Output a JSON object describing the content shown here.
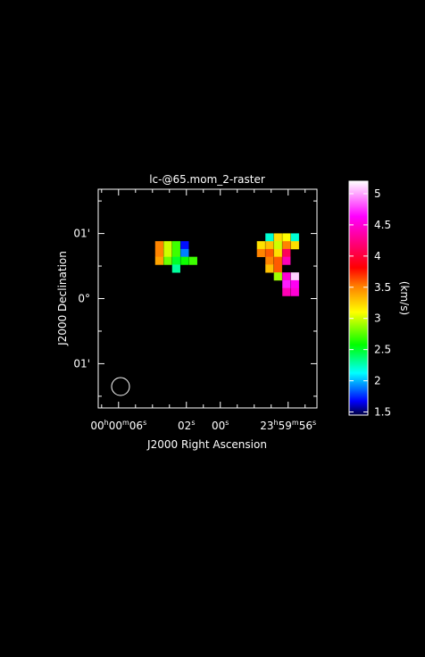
{
  "chart_data": {
    "type": "heatmap",
    "title": "lc-@65.mom_2-raster",
    "xlabel": "J2000 Right Ascension",
    "ylabel": "J2000 Declination",
    "x_ticks": [
      {
        "label": "00h00m06s",
        "h": "00",
        "m": "00",
        "s": "06",
        "ra_sec": 6
      },
      {
        "label": "02s",
        "s": "02",
        "ra_sec": 2
      },
      {
        "label": "00s",
        "s": "00",
        "ra_sec": 0
      },
      {
        "label": "23h59m56s",
        "h": "23",
        "m": "59",
        "s": "56",
        "ra_sec": -4
      }
    ],
    "y_ticks": [
      {
        "label": "01'",
        "dec_arcmin": 1
      },
      {
        "label": "0°",
        "dec_arcmin": 0
      },
      {
        "label": "01'",
        "dec_arcmin": -1
      }
    ],
    "xlim_ra_sec": [
      7.2,
      -5.7
    ],
    "ylim_dec_arcmin": [
      -1.68,
      1.68
    ],
    "grid": false,
    "colorbar": {
      "label": "(km/s)",
      "min": 1.45,
      "max": 5.2,
      "ticks": [
        "1.5",
        "2",
        "2.5",
        "3",
        "3.5",
        "4",
        "4.5",
        "5"
      ]
    },
    "beam": "circle, lower-left",
    "pixels": [
      {
        "ra": 3.6,
        "dec": 0.82,
        "v": 3.5
      },
      {
        "ra": 3.1,
        "dec": 0.82,
        "v": 3.0
      },
      {
        "ra": 2.6,
        "dec": 0.82,
        "v": 2.7
      },
      {
        "ra": 2.1,
        "dec": 0.82,
        "v": 1.7
      },
      {
        "ra": 3.6,
        "dec": 0.7,
        "v": 3.5
      },
      {
        "ra": 3.1,
        "dec": 0.7,
        "v": 3.0
      },
      {
        "ra": 2.6,
        "dec": 0.7,
        "v": 2.7
      },
      {
        "ra": 2.1,
        "dec": 0.7,
        "v": 1.9
      },
      {
        "ra": 3.6,
        "dec": 0.58,
        "v": 3.4
      },
      {
        "ra": 3.1,
        "dec": 0.58,
        "v": 2.8
      },
      {
        "ra": 2.6,
        "dec": 0.58,
        "v": 2.5
      },
      {
        "ra": 2.1,
        "dec": 0.58,
        "v": 2.6
      },
      {
        "ra": 1.6,
        "dec": 0.58,
        "v": 2.7
      },
      {
        "ra": 2.6,
        "dec": 0.46,
        "v": 2.3
      },
      {
        "ra": -2.9,
        "dec": 0.94,
        "v": 2.2
      },
      {
        "ra": -3.4,
        "dec": 0.94,
        "v": 3.2
      },
      {
        "ra": -3.9,
        "dec": 0.94,
        "v": 3.1
      },
      {
        "ra": -4.4,
        "dec": 0.94,
        "v": 2.2
      },
      {
        "ra": -2.4,
        "dec": 0.82,
        "v": 3.2
      },
      {
        "ra": -2.9,
        "dec": 0.82,
        "v": 3.3
      },
      {
        "ra": -3.4,
        "dec": 0.82,
        "v": 3.0
      },
      {
        "ra": -3.9,
        "dec": 0.82,
        "v": 3.5
      },
      {
        "ra": -4.4,
        "dec": 0.82,
        "v": 3.2
      },
      {
        "ra": -2.4,
        "dec": 0.7,
        "v": 3.5
      },
      {
        "ra": -2.9,
        "dec": 0.7,
        "v": 3.6
      },
      {
        "ra": -3.4,
        "dec": 0.7,
        "v": 3.2
      },
      {
        "ra": -3.9,
        "dec": 0.7,
        "v": 4.1
      },
      {
        "ra": -2.9,
        "dec": 0.58,
        "v": 3.5
      },
      {
        "ra": -3.4,
        "dec": 0.58,
        "v": 3.6
      },
      {
        "ra": -3.9,
        "dec": 0.58,
        "v": 4.4
      },
      {
        "ra": -2.9,
        "dec": 0.46,
        "v": 3.3
      },
      {
        "ra": -3.4,
        "dec": 0.46,
        "v": 3.6
      },
      {
        "ra": -3.4,
        "dec": 0.34,
        "v": 2.9
      },
      {
        "ra": -3.9,
        "dec": 0.34,
        "v": 4.5
      },
      {
        "ra": -4.4,
        "dec": 0.34,
        "v": 5.1
      },
      {
        "ra": -3.9,
        "dec": 0.22,
        "v": 4.7
      },
      {
        "ra": -4.4,
        "dec": 0.22,
        "v": 4.6
      },
      {
        "ra": -3.9,
        "dec": 0.1,
        "v": 4.4
      },
      {
        "ra": -4.4,
        "dec": 0.1,
        "v": 4.5
      }
    ]
  }
}
